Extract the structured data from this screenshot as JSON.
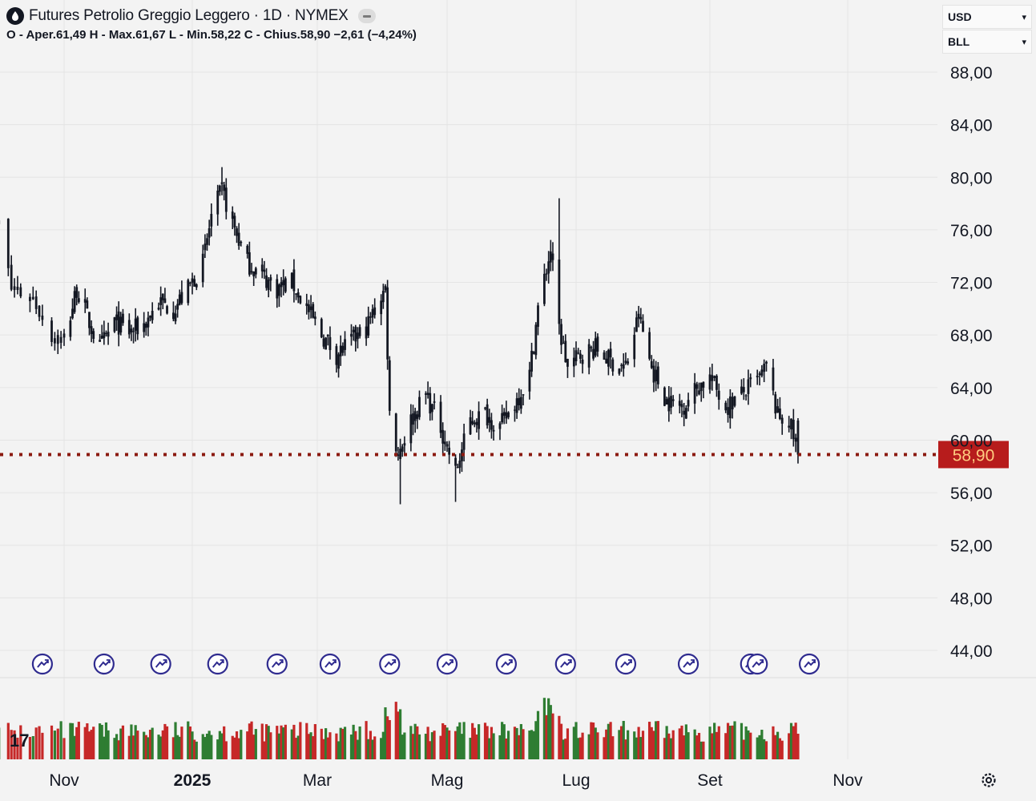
{
  "header": {
    "title": "Futures Petrolio Greggio Leggero · 1D · NYMEX",
    "ohlc": "O - Aper.61,49  H - Max.61,67  L - Min.58,22  C - Chius.58,90  −2,61 (−4,24%)",
    "icon": "oil-drop-icon"
  },
  "selectors": {
    "currency": "USD",
    "unit": "BLL"
  },
  "price_axis": {
    "labels": [
      "88,00",
      "84,00",
      "80,00",
      "76,00",
      "72,00",
      "68,00",
      "64,00",
      "60,00",
      "56,00",
      "52,00",
      "48,00",
      "44,00"
    ],
    "last_price_label": "58,90",
    "last_price_color": "#b71c1c"
  },
  "time_axis": {
    "labels": [
      "Nov",
      "2025",
      "Mar",
      "Mag",
      "Lug",
      "Set",
      "Nov"
    ]
  },
  "colors": {
    "candle": "#131722",
    "volume_up": "#2e7d32",
    "volume_down": "#c62828",
    "event_icon": "#2f2b8f",
    "price_line": "#8b1a10"
  },
  "chart_data": {
    "type": "candlestick",
    "title": "Futures Petrolio Greggio Leggero · 1D · NYMEX",
    "ylim": [
      42,
      90
    ],
    "last_price": 58.9,
    "price_path": [
      [
        "2024-10-08",
        74.5
      ],
      [
        "2024-10-11",
        76.5
      ],
      [
        "2024-10-15",
        71.5
      ],
      [
        "2024-10-22",
        70.8
      ],
      [
        "2024-10-28",
        68.0
      ],
      [
        "2024-11-01",
        67.5
      ],
      [
        "2024-11-07",
        71.5
      ],
      [
        "2024-11-14",
        68.5
      ],
      [
        "2024-11-18",
        67.0
      ],
      [
        "2024-11-25",
        69.0
      ],
      [
        "2024-12-02",
        68.2
      ],
      [
        "2024-12-09",
        68.8
      ],
      [
        "2024-12-16",
        70.5
      ],
      [
        "2024-12-23",
        70.0
      ],
      [
        "2024-12-30",
        71.5
      ],
      [
        "2025-01-06",
        73.5
      ],
      [
        "2025-01-10",
        77.0
      ],
      [
        "2025-01-15",
        79.0
      ],
      [
        "2025-01-20",
        76.5
      ],
      [
        "2025-01-27",
        73.5
      ],
      [
        "2025-02-03",
        72.5
      ],
      [
        "2025-02-10",
        71.5
      ],
      [
        "2025-02-17",
        72.0
      ],
      [
        "2025-02-24",
        70.0
      ],
      [
        "2025-03-03",
        68.0
      ],
      [
        "2025-03-10",
        66.5
      ],
      [
        "2025-03-17",
        67.5
      ],
      [
        "2025-03-24",
        68.5
      ],
      [
        "2025-03-31",
        71.0
      ],
      [
        "2025-04-02",
        71.5
      ],
      [
        "2025-04-04",
        62.0
      ],
      [
        "2025-04-08",
        59.0
      ],
      [
        "2025-04-14",
        61.5
      ],
      [
        "2025-04-21",
        63.5
      ],
      [
        "2025-04-28",
        61.0
      ],
      [
        "2025-05-05",
        57.5
      ],
      [
        "2025-05-12",
        61.5
      ],
      [
        "2025-05-19",
        62.0
      ],
      [
        "2025-05-26",
        61.0
      ],
      [
        "2025-06-02",
        62.8
      ],
      [
        "2025-06-09",
        65.0
      ],
      [
        "2025-06-13",
        70.0
      ],
      [
        "2025-06-19",
        74.5
      ],
      [
        "2025-06-23",
        68.5
      ],
      [
        "2025-06-27",
        65.5
      ],
      [
        "2025-07-03",
        66.5
      ],
      [
        "2025-07-10",
        67.0
      ],
      [
        "2025-07-17",
        66.0
      ],
      [
        "2025-07-24",
        65.5
      ],
      [
        "2025-07-30",
        69.5
      ],
      [
        "2025-08-05",
        65.5
      ],
      [
        "2025-08-12",
        63.0
      ],
      [
        "2025-08-19",
        62.5
      ],
      [
        "2025-08-26",
        64.0
      ],
      [
        "2025-09-01",
        64.8
      ],
      [
        "2025-09-08",
        62.5
      ],
      [
        "2025-09-15",
        63.5
      ],
      [
        "2025-09-22",
        64.5
      ],
      [
        "2025-09-26",
        65.5
      ],
      [
        "2025-10-01",
        61.8
      ],
      [
        "2025-10-06",
        61.5
      ],
      [
        "2025-10-10",
        58.9
      ]
    ],
    "extremes": [
      {
        "date": "2025-01-15",
        "high": 80.77
      },
      {
        "date": "2025-04-09",
        "low": 55.12
      },
      {
        "date": "2025-05-05",
        "low": 55.3
      },
      {
        "date": "2025-06-23",
        "high": 78.4
      }
    ],
    "events": [
      "2024-10-25",
      "2024-11-20",
      "2024-12-17",
      "2025-01-13",
      "2025-02-10",
      "2025-03-07",
      "2025-04-04",
      "2025-05-01",
      "2025-05-29",
      "2025-06-26",
      "2025-07-24",
      "2025-08-22",
      "2025-09-19",
      "2025-09-22",
      "2025-10-15"
    ]
  }
}
